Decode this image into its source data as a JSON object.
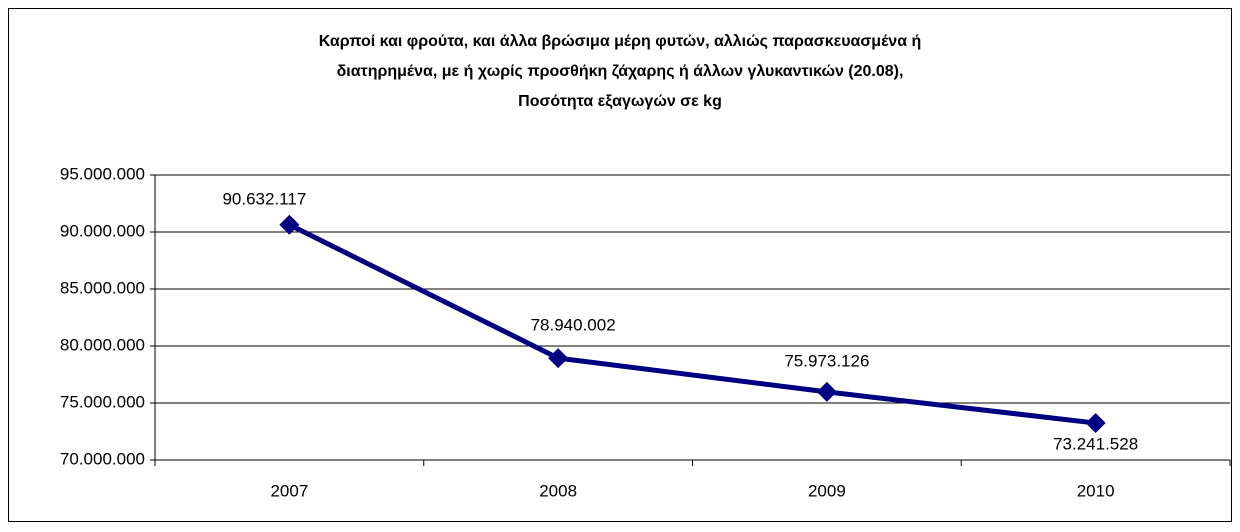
{
  "chart_data": {
    "type": "line",
    "title": [
      "Καρποί και φρούτα, και άλλα βρώσιμα μέρη φυτών, αλλιώς παρασκευασμένα ή",
      "διατηρημένα, με ή χωρίς προσθήκη ζάχαρης ή άλλων γλυκαντικών (20.08),",
      "Ποσότητα  εξαγωγών σε kg"
    ],
    "categories": [
      "2007",
      "2008",
      "2009",
      "2010"
    ],
    "values": [
      90632117,
      78940002,
      75973126,
      73241528
    ],
    "value_labels": [
      "90.632.117",
      "78.940.002",
      "75.973.126",
      "73.241.528"
    ],
    "color": "#000080",
    "ylim": [
      70000000,
      95000000
    ],
    "yticks": [
      {
        "value": 70000000,
        "label": "70.000.000"
      },
      {
        "value": 75000000,
        "label": "75.000.000"
      },
      {
        "value": 80000000,
        "label": "80.000.000"
      },
      {
        "value": 85000000,
        "label": "85.000.000"
      },
      {
        "value": 90000000,
        "label": "90.000.000"
      },
      {
        "value": 95000000,
        "label": "95.000.000"
      }
    ],
    "grid": true
  }
}
